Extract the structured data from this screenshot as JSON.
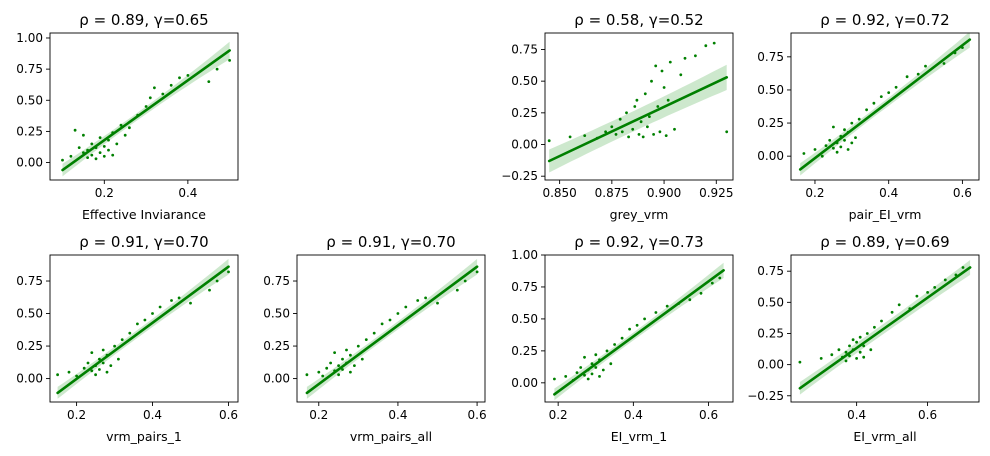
{
  "chart_data": [
    {
      "type": "scatter",
      "title": "ρ = 0.89, γ=0.65",
      "xlabel": "Effective Inviarance",
      "ylabel": "",
      "xlim": [
        0.07,
        0.52
      ],
      "ylim": [
        -0.14,
        1.04
      ],
      "xticks": [
        0.2,
        0.4
      ],
      "xtick_labels": [
        "0.2",
        "0.4"
      ],
      "yticks": [
        0.0,
        0.25,
        0.5,
        0.75,
        1.0
      ],
      "ytick_labels": [
        "0.00",
        "0.25",
        "0.50",
        "0.75",
        "1.00"
      ],
      "grid": false,
      "color": "#008000",
      "band_color": "#c8e6c8",
      "regression": {
        "x": [
          0.1,
          0.5
        ],
        "y": [
          -0.06,
          0.9
        ],
        "band_half_width": [
          0.03,
          0.07
        ]
      },
      "points": [
        [
          0.1,
          0.02
        ],
        [
          0.12,
          0.05
        ],
        [
          0.13,
          0.26
        ],
        [
          0.14,
          0.12
        ],
        [
          0.15,
          0.08
        ],
        [
          0.15,
          0.22
        ],
        [
          0.16,
          0.04
        ],
        [
          0.16,
          0.1
        ],
        [
          0.17,
          0.06
        ],
        [
          0.17,
          0.15
        ],
        [
          0.18,
          0.03
        ],
        [
          0.18,
          0.12
        ],
        [
          0.19,
          0.08
        ],
        [
          0.19,
          0.2
        ],
        [
          0.2,
          0.05
        ],
        [
          0.2,
          0.13
        ],
        [
          0.21,
          0.1
        ],
        [
          0.21,
          0.18
        ],
        [
          0.22,
          0.06
        ],
        [
          0.22,
          0.24
        ],
        [
          0.23,
          0.15
        ],
        [
          0.24,
          0.3
        ],
        [
          0.25,
          0.22
        ],
        [
          0.26,
          0.28
        ],
        [
          0.28,
          0.38
        ],
        [
          0.3,
          0.45
        ],
        [
          0.31,
          0.52
        ],
        [
          0.32,
          0.6
        ],
        [
          0.34,
          0.55
        ],
        [
          0.36,
          0.62
        ],
        [
          0.38,
          0.68
        ],
        [
          0.4,
          0.7
        ],
        [
          0.45,
          0.65
        ],
        [
          0.47,
          0.75
        ],
        [
          0.5,
          0.82
        ]
      ]
    },
    {
      "type": "scatter",
      "title": "ρ = 0.58, γ=0.52",
      "xlabel": "grey_vrm",
      "ylabel": "",
      "xlim": [
        0.843,
        0.933
      ],
      "ylim": [
        -0.28,
        0.88
      ],
      "xticks": [
        0.85,
        0.875,
        0.9,
        0.925
      ],
      "xtick_labels": [
        "0.850",
        "0.875",
        "0.900",
        "0.925"
      ],
      "yticks": [
        -0.25,
        0.0,
        0.25,
        0.5,
        0.75
      ],
      "ytick_labels": [
        "−0.25",
        "0.00",
        "0.25",
        "0.50",
        "0.75"
      ],
      "grid": false,
      "color": "#008000",
      "band_color": "#c8e6c8",
      "regression": {
        "x": [
          0.845,
          0.93
        ],
        "y": [
          -0.13,
          0.53
        ],
        "band_half_width": [
          0.08,
          0.1
        ]
      },
      "points": [
        [
          0.845,
          0.03
        ],
        [
          0.855,
          0.06
        ],
        [
          0.862,
          0.07
        ],
        [
          0.868,
          0.05
        ],
        [
          0.872,
          0.1
        ],
        [
          0.875,
          0.14
        ],
        [
          0.877,
          0.08
        ],
        [
          0.879,
          0.2
        ],
        [
          0.88,
          0.1
        ],
        [
          0.882,
          0.25
        ],
        [
          0.883,
          0.06
        ],
        [
          0.885,
          0.12
        ],
        [
          0.886,
          0.3
        ],
        [
          0.887,
          0.35
        ],
        [
          0.888,
          0.08
        ],
        [
          0.889,
          0.18
        ],
        [
          0.89,
          0.06
        ],
        [
          0.891,
          0.4
        ],
        [
          0.892,
          0.14
        ],
        [
          0.893,
          0.22
        ],
        [
          0.894,
          0.5
        ],
        [
          0.895,
          0.08
        ],
        [
          0.896,
          0.62
        ],
        [
          0.897,
          0.3
        ],
        [
          0.898,
          0.1
        ],
        [
          0.899,
          0.58
        ],
        [
          0.9,
          0.45
        ],
        [
          0.901,
          0.07
        ],
        [
          0.902,
          0.35
        ],
        [
          0.903,
          0.65
        ],
        [
          0.905,
          0.12
        ],
        [
          0.908,
          0.55
        ],
        [
          0.91,
          0.68
        ],
        [
          0.915,
          0.7
        ],
        [
          0.92,
          0.78
        ],
        [
          0.924,
          0.8
        ],
        [
          0.93,
          0.1
        ]
      ]
    },
    {
      "type": "scatter",
      "title": "ρ = 0.92, γ=0.72",
      "xlabel": "pair_EI_vrm",
      "ylabel": "",
      "xlim": [
        0.135,
        0.645
      ],
      "ylim": [
        -0.18,
        0.93
      ],
      "xticks": [
        0.2,
        0.4,
        0.6
      ],
      "xtick_labels": [
        "0.2",
        "0.4",
        "0.6"
      ],
      "yticks": [
        0.0,
        0.25,
        0.5,
        0.75
      ],
      "ytick_labels": [
        "0.00",
        "0.25",
        "0.50",
        "0.75"
      ],
      "grid": false,
      "color": "#008000",
      "band_color": "#c8e6c8",
      "regression": {
        "x": [
          0.16,
          0.62
        ],
        "y": [
          -0.1,
          0.88
        ],
        "band_half_width": [
          0.03,
          0.06
        ]
      },
      "points": [
        [
          0.17,
          0.02
        ],
        [
          0.2,
          0.05
        ],
        [
          0.22,
          0.0
        ],
        [
          0.23,
          0.08
        ],
        [
          0.24,
          0.12
        ],
        [
          0.25,
          0.06
        ],
        [
          0.25,
          0.22
        ],
        [
          0.26,
          0.1
        ],
        [
          0.26,
          0.03
        ],
        [
          0.27,
          0.15
        ],
        [
          0.27,
          0.07
        ],
        [
          0.28,
          0.12
        ],
        [
          0.28,
          0.2
        ],
        [
          0.29,
          0.05
        ],
        [
          0.29,
          0.18
        ],
        [
          0.3,
          0.1
        ],
        [
          0.3,
          0.25
        ],
        [
          0.31,
          0.14
        ],
        [
          0.32,
          0.28
        ],
        [
          0.34,
          0.35
        ],
        [
          0.36,
          0.4
        ],
        [
          0.38,
          0.45
        ],
        [
          0.4,
          0.48
        ],
        [
          0.42,
          0.52
        ],
        [
          0.45,
          0.6
        ],
        [
          0.48,
          0.62
        ],
        [
          0.5,
          0.68
        ],
        [
          0.55,
          0.7
        ],
        [
          0.58,
          0.78
        ],
        [
          0.6,
          0.82
        ]
      ]
    },
    {
      "type": "scatter",
      "title": "ρ = 0.91, γ=0.70",
      "xlabel": "vrm_pairs_1",
      "ylabel": "",
      "xlim": [
        0.13,
        0.625
      ],
      "ylim": [
        -0.18,
        0.95
      ],
      "xticks": [
        0.2,
        0.4,
        0.6
      ],
      "xtick_labels": [
        "0.2",
        "0.4",
        "0.6"
      ],
      "yticks": [
        0.0,
        0.25,
        0.5,
        0.75
      ],
      "ytick_labels": [
        "0.00",
        "0.25",
        "0.50",
        "0.75"
      ],
      "grid": false,
      "color": "#008000",
      "band_color": "#c8e6c8",
      "regression": {
        "x": [
          0.15,
          0.6
        ],
        "y": [
          -0.11,
          0.86
        ],
        "band_half_width": [
          0.03,
          0.06
        ]
      },
      "points": [
        [
          0.15,
          0.03
        ],
        [
          0.18,
          0.05
        ],
        [
          0.2,
          0.02
        ],
        [
          0.22,
          0.08
        ],
        [
          0.23,
          0.12
        ],
        [
          0.24,
          0.06
        ],
        [
          0.24,
          0.2
        ],
        [
          0.25,
          0.1
        ],
        [
          0.25,
          0.03
        ],
        [
          0.26,
          0.15
        ],
        [
          0.26,
          0.07
        ],
        [
          0.27,
          0.12
        ],
        [
          0.27,
          0.22
        ],
        [
          0.28,
          0.05
        ],
        [
          0.28,
          0.18
        ],
        [
          0.29,
          0.1
        ],
        [
          0.3,
          0.25
        ],
        [
          0.31,
          0.15
        ],
        [
          0.32,
          0.3
        ],
        [
          0.34,
          0.35
        ],
        [
          0.36,
          0.42
        ],
        [
          0.38,
          0.45
        ],
        [
          0.4,
          0.5
        ],
        [
          0.42,
          0.55
        ],
        [
          0.45,
          0.6
        ],
        [
          0.47,
          0.62
        ],
        [
          0.5,
          0.58
        ],
        [
          0.55,
          0.68
        ],
        [
          0.57,
          0.75
        ],
        [
          0.6,
          0.82
        ]
      ]
    },
    {
      "type": "scatter",
      "title": "ρ = 0.91, γ=0.70",
      "xlabel": "vrm_pairs_all",
      "ylabel": "",
      "xlim": [
        0.145,
        0.62
      ],
      "ylim": [
        -0.18,
        0.95
      ],
      "xticks": [
        0.2,
        0.4,
        0.6
      ],
      "xtick_labels": [
        "0.2",
        "0.4",
        "0.6"
      ],
      "yticks": [
        0.0,
        0.25,
        0.5,
        0.75
      ],
      "ytick_labels": [
        "0.00",
        "0.25",
        "0.50",
        "0.75"
      ],
      "grid": false,
      "color": "#008000",
      "band_color": "#c8e6c8",
      "regression": {
        "x": [
          0.17,
          0.6
        ],
        "y": [
          -0.11,
          0.86
        ],
        "band_half_width": [
          0.03,
          0.06
        ]
      },
      "points": [
        [
          0.17,
          0.03
        ],
        [
          0.2,
          0.05
        ],
        [
          0.21,
          0.02
        ],
        [
          0.22,
          0.08
        ],
        [
          0.23,
          0.12
        ],
        [
          0.24,
          0.06
        ],
        [
          0.24,
          0.2
        ],
        [
          0.25,
          0.1
        ],
        [
          0.25,
          0.03
        ],
        [
          0.26,
          0.15
        ],
        [
          0.26,
          0.07
        ],
        [
          0.27,
          0.12
        ],
        [
          0.27,
          0.22
        ],
        [
          0.28,
          0.05
        ],
        [
          0.28,
          0.18
        ],
        [
          0.29,
          0.1
        ],
        [
          0.3,
          0.25
        ],
        [
          0.31,
          0.15
        ],
        [
          0.32,
          0.3
        ],
        [
          0.34,
          0.35
        ],
        [
          0.36,
          0.42
        ],
        [
          0.38,
          0.45
        ],
        [
          0.4,
          0.5
        ],
        [
          0.42,
          0.55
        ],
        [
          0.45,
          0.6
        ],
        [
          0.47,
          0.62
        ],
        [
          0.5,
          0.58
        ],
        [
          0.55,
          0.68
        ],
        [
          0.57,
          0.75
        ],
        [
          0.6,
          0.82
        ]
      ]
    },
    {
      "type": "scatter",
      "title": "ρ = 0.92, γ=0.73",
      "xlabel": "EI_vrm_1",
      "ylabel": "",
      "xlim": [
        0.165,
        0.665
      ],
      "ylim": [
        -0.15,
        1.0
      ],
      "xticks": [
        0.2,
        0.4,
        0.6
      ],
      "xtick_labels": [
        "0.2",
        "0.4",
        "0.6"
      ],
      "yticks": [
        0.0,
        0.25,
        0.5,
        0.75,
        1.0
      ],
      "ytick_labels": [
        "0.00",
        "0.25",
        "0.50",
        "0.75",
        "1.00"
      ],
      "grid": false,
      "color": "#008000",
      "band_color": "#c8e6c8",
      "regression": {
        "x": [
          0.19,
          0.64
        ],
        "y": [
          -0.09,
          0.88
        ],
        "band_half_width": [
          0.03,
          0.06
        ]
      },
      "points": [
        [
          0.19,
          0.03
        ],
        [
          0.22,
          0.05
        ],
        [
          0.24,
          0.02
        ],
        [
          0.25,
          0.08
        ],
        [
          0.26,
          0.12
        ],
        [
          0.27,
          0.06
        ],
        [
          0.27,
          0.2
        ],
        [
          0.28,
          0.1
        ],
        [
          0.28,
          0.03
        ],
        [
          0.29,
          0.15
        ],
        [
          0.29,
          0.07
        ],
        [
          0.3,
          0.12
        ],
        [
          0.3,
          0.22
        ],
        [
          0.31,
          0.05
        ],
        [
          0.31,
          0.18
        ],
        [
          0.32,
          0.1
        ],
        [
          0.33,
          0.25
        ],
        [
          0.34,
          0.15
        ],
        [
          0.35,
          0.3
        ],
        [
          0.37,
          0.35
        ],
        [
          0.39,
          0.42
        ],
        [
          0.41,
          0.45
        ],
        [
          0.43,
          0.5
        ],
        [
          0.46,
          0.55
        ],
        [
          0.49,
          0.6
        ],
        [
          0.52,
          0.62
        ],
        [
          0.55,
          0.65
        ],
        [
          0.58,
          0.7
        ],
        [
          0.61,
          0.78
        ],
        [
          0.63,
          0.82
        ]
      ]
    },
    {
      "type": "scatter",
      "title": "ρ = 0.89, γ=0.69",
      "xlabel": "EI_vrm_all",
      "ylabel": "",
      "xlim": [
        0.215,
        0.745
      ],
      "ylim": [
        -0.3,
        0.88
      ],
      "xticks": [
        0.4,
        0.6
      ],
      "xtick_labels": [
        "0.4",
        "0.6"
      ],
      "yticks": [
        -0.25,
        0.0,
        0.25,
        0.5,
        0.75
      ],
      "ytick_labels": [
        "−0.25",
        "0.00",
        "0.25",
        "0.50",
        "0.75"
      ],
      "grid": false,
      "color": "#008000",
      "band_color": "#c8e6c8",
      "regression": {
        "x": [
          0.24,
          0.72
        ],
        "y": [
          -0.19,
          0.78
        ],
        "band_half_width": [
          0.04,
          0.06
        ]
      },
      "points": [
        [
          0.24,
          0.02
        ],
        [
          0.3,
          0.05
        ],
        [
          0.33,
          0.08
        ],
        [
          0.35,
          0.12
        ],
        [
          0.36,
          0.06
        ],
        [
          0.37,
          0.1
        ],
        [
          0.37,
          0.03
        ],
        [
          0.38,
          0.15
        ],
        [
          0.38,
          0.07
        ],
        [
          0.39,
          0.12
        ],
        [
          0.39,
          0.2
        ],
        [
          0.4,
          0.05
        ],
        [
          0.4,
          0.18
        ],
        [
          0.41,
          0.1
        ],
        [
          0.41,
          0.22
        ],
        [
          0.42,
          0.06
        ],
        [
          0.42,
          0.15
        ],
        [
          0.43,
          0.25
        ],
        [
          0.44,
          0.12
        ],
        [
          0.45,
          0.3
        ],
        [
          0.47,
          0.35
        ],
        [
          0.5,
          0.42
        ],
        [
          0.52,
          0.48
        ],
        [
          0.55,
          0.45
        ],
        [
          0.57,
          0.55
        ],
        [
          0.6,
          0.58
        ],
        [
          0.62,
          0.62
        ],
        [
          0.65,
          0.68
        ],
        [
          0.68,
          0.72
        ],
        [
          0.7,
          0.78
        ]
      ]
    }
  ]
}
